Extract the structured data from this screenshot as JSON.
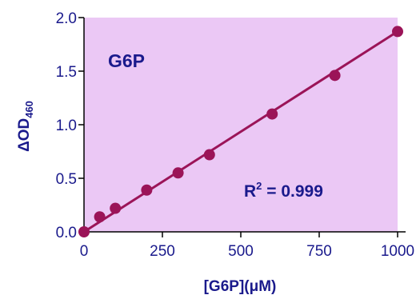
{
  "chart_data": {
    "type": "scatter",
    "title": "G6P",
    "xlabel": "[G6P](μM)",
    "ylabel_main": "ΔOD",
    "ylabel_sub": "460",
    "xlim": [
      0,
      1000
    ],
    "ylim": [
      0,
      2.0
    ],
    "x_ticks": [
      0,
      250,
      500,
      750,
      1000
    ],
    "x_tick_labels": [
      "0",
      "250",
      "500",
      "750",
      "1000"
    ],
    "y_ticks": [
      0,
      0.5,
      1.0,
      1.5,
      2.0
    ],
    "y_tick_labels": [
      "0.0",
      "0.5",
      "1.0",
      "1.5",
      "2.0"
    ],
    "grid": false,
    "series": [
      {
        "x": [
          0,
          50,
          100,
          200,
          300,
          400,
          600,
          800,
          1000
        ],
        "y": [
          0.0,
          0.14,
          0.22,
          0.39,
          0.55,
          0.72,
          1.1,
          1.46,
          1.87
        ]
      }
    ],
    "fit_line": {
      "x": [
        0,
        1000
      ],
      "y": [
        0.0,
        1.87
      ]
    },
    "r2_label": "R",
    "r2_sup": "2",
    "r2_value": " = 0.999",
    "colors": {
      "plot_background": "#ebc8f5",
      "marker": "#9b1458",
      "line": "#9b1458",
      "text": "#1a1a8c",
      "axis": "#000000"
    }
  }
}
